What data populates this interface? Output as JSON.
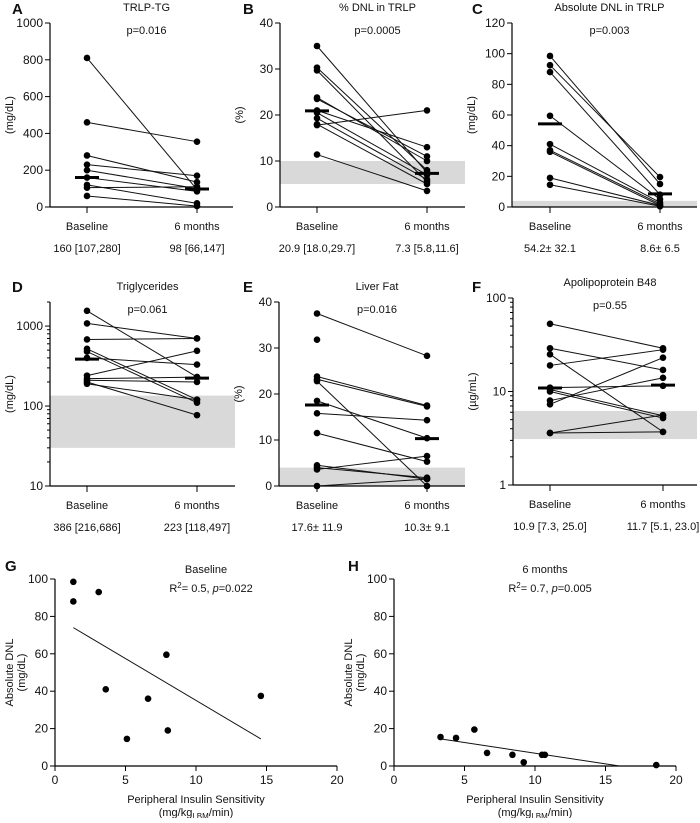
{
  "colors": {
    "marker": "#000000",
    "reference_band": "#d9d9d9",
    "axis": "#000000"
  },
  "chart_data": [
    {
      "panel": "A",
      "type": "paired_dot",
      "title": "TRLP-TG",
      "annotation": "p=0.016",
      "ylabel": "(mg/dL)",
      "categories": [
        "Baseline",
        "6 months"
      ],
      "summary": [
        "160 [107,280]",
        "98 [66,147]"
      ],
      "yscale": "linear",
      "ylim": [
        0,
        1000
      ],
      "yticks": [
        0,
        200,
        400,
        600,
        800,
        1000
      ],
      "reference_range": null,
      "center": [
        160,
        98
      ],
      "pairs": [
        [
          810,
          95
        ],
        [
          460,
          355
        ],
        [
          280,
          135
        ],
        [
          230,
          170
        ],
        [
          200,
          100
        ],
        [
          160,
          85
        ],
        [
          120,
          20
        ],
        [
          105,
          110
        ],
        [
          60,
          5
        ]
      ]
    },
    {
      "panel": "B",
      "type": "paired_dot",
      "title": "% DNL in TRLP",
      "annotation": "p=0.0005",
      "ylabel": "(%)",
      "categories": [
        "Baseline",
        "6 months"
      ],
      "summary": [
        "20.9 [18.0,29.7]",
        "7.3 [5.8,11.6]"
      ],
      "yscale": "linear",
      "ylim": [
        0,
        40
      ],
      "yticks": [
        0,
        10,
        20,
        30,
        40
      ],
      "reference_range": [
        5,
        10
      ],
      "center": [
        20.9,
        7.3
      ],
      "pairs": [
        [
          35,
          7.5
        ],
        [
          30.3,
          8
        ],
        [
          29.7,
          5.5
        ],
        [
          23.8,
          10
        ],
        [
          23.5,
          11
        ],
        [
          21,
          13
        ],
        [
          20.5,
          7
        ],
        [
          19.3,
          6
        ],
        [
          18,
          5
        ],
        [
          17.8,
          21
        ],
        [
          11.4,
          3.5
        ]
      ]
    },
    {
      "panel": "C",
      "type": "paired_dot",
      "title": "Absolute DNL in TRLP",
      "annotation": "p=0.003",
      "ylabel": "(mg/dL)",
      "categories": [
        "Baseline",
        "6 months"
      ],
      "summary": [
        "54.2± 32.1",
        "8.6± 6.5"
      ],
      "yscale": "linear",
      "ylim": [
        0,
        120
      ],
      "yticks": [
        0,
        20,
        40,
        60,
        80,
        100,
        120
      ],
      "reference_range": [
        0,
        4
      ],
      "center": [
        54.2,
        8.6
      ],
      "pairs": [
        [
          98.5,
          15
        ],
        [
          92.5,
          19.5
        ],
        [
          88,
          8
        ],
        [
          59.5,
          5
        ],
        [
          41,
          3
        ],
        [
          37,
          2
        ],
        [
          36,
          1
        ],
        [
          19,
          1
        ],
        [
          14.5,
          0.5
        ]
      ]
    },
    {
      "panel": "D",
      "type": "paired_dot",
      "title": "Triglycerides",
      "annotation": "p=0.061",
      "ylabel": "(mg/dL)",
      "categories": [
        "Baseline",
        "6 months"
      ],
      "summary": [
        "386 [216,686]",
        "223 [118,497]"
      ],
      "yscale": "log",
      "ylim": [
        10,
        2000
      ],
      "yticks": [
        10,
        100,
        1000
      ],
      "reference_range": [
        30,
        135
      ],
      "center": [
        386,
        223
      ],
      "pairs": [
        [
          1550,
          230
        ],
        [
          1080,
          700
        ],
        [
          680,
          700
        ],
        [
          520,
          120
        ],
        [
          480,
          110
        ],
        [
          400,
          330
        ],
        [
          240,
          490
        ],
        [
          220,
          230
        ],
        [
          210,
          200
        ],
        [
          190,
          120
        ],
        [
          200,
          77
        ]
      ]
    },
    {
      "panel": "E",
      "type": "paired_dot",
      "title": "Liver Fat",
      "annotation": "p=0.016",
      "ylabel": "(%)",
      "categories": [
        "Baseline",
        "6 months"
      ],
      "summary": [
        "17.6± 11.9",
        "10.3± 9.1"
      ],
      "yscale": "linear",
      "ylim": [
        0,
        40
      ],
      "yticks": [
        0,
        10,
        20,
        30,
        40
      ],
      "reference_range": [
        0,
        4
      ],
      "center": [
        17.6,
        10.3
      ],
      "pairs": [
        [
          37.5,
          28.3
        ],
        [
          31.8,
          null
        ],
        [
          23.8,
          17.5
        ],
        [
          23.2,
          17.3
        ],
        [
          22.8,
          0
        ],
        [
          18.5,
          10.4
        ],
        [
          15.8,
          14.3
        ],
        [
          11.5,
          5.3
        ],
        [
          4.5,
          1.5
        ],
        [
          3.6,
          6.5
        ],
        [
          4,
          1.8
        ],
        [
          0,
          1.5
        ]
      ]
    },
    {
      "panel": "F",
      "type": "paired_dot",
      "title": "Apolipoprotein B48",
      "annotation": "p=0.55",
      "ylabel": "(µg/mL)",
      "categories": [
        "Baseline",
        "6 months"
      ],
      "summary": [
        "10.9 [7.3, 25.0]",
        "11.7 [5.1, 23.0]"
      ],
      "yscale": "log",
      "ylim": [
        1,
        100
      ],
      "yticks": [
        1,
        10,
        100
      ],
      "reference_range": [
        3.1,
        6.2
      ],
      "center": [
        10.9,
        11.7
      ],
      "pairs": [
        [
          53,
          29
        ],
        [
          29,
          17
        ],
        [
          25,
          3.7
        ],
        [
          19,
          28
        ],
        [
          11,
          11.5
        ],
        [
          10.5,
          5.5
        ],
        [
          10,
          5.2
        ],
        [
          8,
          14
        ],
        [
          7.3,
          23
        ],
        [
          3.6,
          3.7
        ],
        [
          3.6,
          5.6
        ]
      ]
    },
    {
      "panel": "G",
      "type": "scatter",
      "title": "Baseline",
      "annotation": [
        "R",
        "2",
        "= 0.5, ",
        "p",
        "=0.022"
      ],
      "ylabel": [
        "Absolute DNL",
        "(mg/dL)"
      ],
      "xlabel": "Peripheral  Insulin Sensitivity",
      "xunit": [
        "(mg/kg",
        "LBM",
        "/min)"
      ],
      "xlim": [
        0,
        20
      ],
      "xticks": [
        0,
        5,
        10,
        15,
        20
      ],
      "ylim": [
        0,
        100
      ],
      "yticks": [
        0,
        20,
        40,
        60,
        80,
        100
      ],
      "points": [
        [
          1.3,
          98.5
        ],
        [
          1.3,
          88
        ],
        [
          3.1,
          93
        ],
        [
          3.6,
          41
        ],
        [
          5.1,
          14.5
        ],
        [
          6.6,
          36
        ],
        [
          7.9,
          59.5
        ],
        [
          8,
          19
        ],
        [
          14.6,
          37.5
        ]
      ],
      "fit": [
        [
          1.3,
          74
        ],
        [
          14.6,
          14.5
        ]
      ]
    },
    {
      "panel": "H",
      "type": "scatter",
      "title": "6 months",
      "annotation": [
        "R",
        "2",
        "= 0.7, ",
        "p",
        "=0.005"
      ],
      "ylabel": [
        "Absolute DNL",
        "(mg/dL)"
      ],
      "xlabel": "Peripheral  Insulin Sensitivity",
      "xunit": [
        "(mg/kg",
        "LBM",
        "/min)"
      ],
      "xlim": [
        0,
        20
      ],
      "xticks": [
        0,
        5,
        10,
        15,
        20
      ],
      "ylim": [
        0,
        100
      ],
      "yticks": [
        0,
        20,
        40,
        60,
        80,
        100
      ],
      "points": [
        [
          3.3,
          15.5
        ],
        [
          4.4,
          15
        ],
        [
          5.7,
          19.5
        ],
        [
          6.6,
          7
        ],
        [
          8.4,
          6
        ],
        [
          9.2,
          2
        ],
        [
          10.5,
          6
        ],
        [
          10.7,
          6
        ],
        [
          18.6,
          0.5
        ]
      ],
      "fit": [
        [
          3.3,
          14.5
        ],
        [
          16,
          0
        ]
      ]
    }
  ]
}
